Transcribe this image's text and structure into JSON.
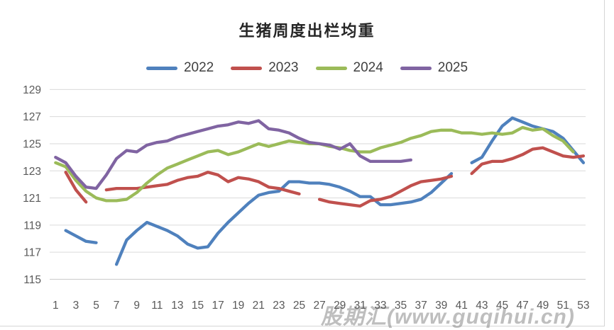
{
  "chart": {
    "watermark": "股期汇(www.guqihui.cn)"
  },
  "chart_data": {
    "type": "line",
    "title": "生猪周度出栏均重",
    "xlabel": "",
    "ylabel": "",
    "x_unit": "week",
    "xticks": [
      1,
      3,
      5,
      7,
      9,
      11,
      13,
      15,
      17,
      19,
      21,
      23,
      25,
      27,
      29,
      31,
      33,
      35,
      37,
      39,
      41,
      43,
      45,
      47,
      49,
      51,
      53
    ],
    "yticks": [
      115,
      117,
      119,
      121,
      123,
      125,
      127,
      129
    ],
    "ylim": [
      115,
      129
    ],
    "grid": "horizontal",
    "legend_position": "top",
    "series": [
      {
        "name": "2022",
        "color": "#4F81BD",
        "values": [
          null,
          118.6,
          118.2,
          117.8,
          117.7,
          null,
          116.1,
          117.9,
          118.6,
          119.2,
          118.9,
          118.6,
          118.2,
          117.6,
          117.3,
          117.4,
          118.4,
          119.2,
          119.9,
          120.6,
          121.2,
          121.4,
          121.5,
          122.2,
          122.2,
          122.1,
          122.1,
          122.0,
          121.8,
          121.5,
          121.1,
          121.1,
          120.5,
          120.5,
          120.6,
          120.7,
          120.9,
          121.4,
          122.1,
          122.8,
          null,
          123.6,
          124.0,
          125.2,
          126.3,
          126.9,
          126.6,
          126.3,
          126.1,
          125.9,
          125.4,
          124.5,
          123.6
        ]
      },
      {
        "name": "2023",
        "color": "#C0504D",
        "values": [
          null,
          122.9,
          121.6,
          120.7,
          null,
          121.6,
          121.7,
          121.7,
          121.7,
          121.8,
          121.9,
          122.0,
          122.3,
          122.5,
          122.6,
          122.9,
          122.7,
          122.2,
          122.5,
          122.4,
          122.2,
          121.8,
          121.7,
          121.5,
          121.3,
          null,
          120.9,
          120.7,
          120.6,
          120.5,
          120.4,
          120.8,
          120.9,
          121.1,
          121.5,
          121.9,
          122.2,
          122.3,
          122.4,
          122.6,
          null,
          122.8,
          123.5,
          123.7,
          123.7,
          123.9,
          124.2,
          124.6,
          124.7,
          124.4,
          124.1,
          124.0,
          124.1
        ]
      },
      {
        "name": "2024",
        "color": "#9BBB59",
        "values": [
          123.6,
          123.3,
          122.3,
          121.5,
          121.0,
          120.8,
          120.8,
          120.9,
          121.4,
          122.1,
          122.7,
          123.2,
          123.5,
          123.8,
          124.1,
          124.4,
          124.5,
          124.2,
          124.4,
          124.7,
          125.0,
          124.8,
          125.0,
          125.2,
          125.1,
          125.0,
          125.0,
          124.8,
          124.7,
          124.5,
          124.4,
          124.4,
          124.7,
          124.9,
          125.1,
          125.4,
          125.6,
          125.9,
          126.0,
          126.0,
          125.8,
          125.8,
          125.7,
          125.8,
          125.7,
          125.8,
          126.2,
          126.0,
          126.1,
          125.6,
          125.2,
          124.4,
          null
        ]
      },
      {
        "name": "2025",
        "color": "#8064A2",
        "values": [
          124.0,
          123.6,
          122.6,
          121.8,
          121.7,
          122.7,
          123.9,
          124.5,
          124.4,
          124.9,
          125.1,
          125.2,
          125.5,
          125.7,
          125.9,
          126.1,
          126.3,
          126.4,
          126.6,
          126.5,
          126.7,
          126.1,
          126.0,
          125.8,
          125.4,
          125.1,
          125.0,
          124.9,
          124.6,
          125.0,
          124.1,
          123.7,
          123.7,
          123.7,
          123.7,
          123.8,
          null,
          null,
          null,
          null,
          null,
          null,
          null,
          null,
          null,
          null,
          null,
          null,
          null,
          null,
          null,
          null,
          null
        ]
      }
    ]
  }
}
